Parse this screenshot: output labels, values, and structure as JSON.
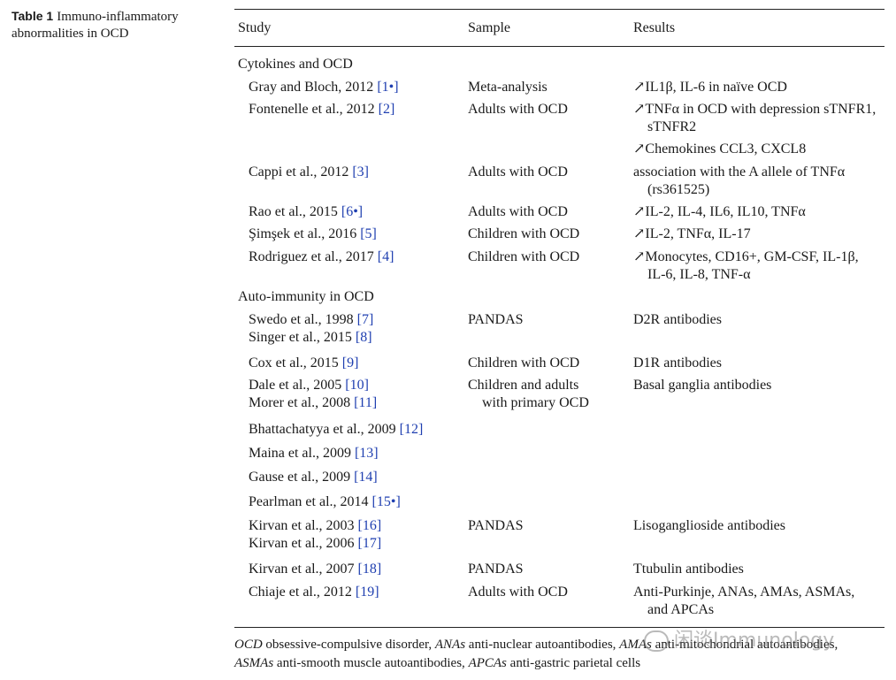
{
  "caption": {
    "label": "Table 1",
    "text": "Immuno-inflammatory abnormalities in OCD"
  },
  "columns": {
    "study": "Study",
    "sample": "Sample",
    "results": "Results"
  },
  "sections": {
    "cytokines": "Cytokines and OCD",
    "autoimmunity": "Auto-immunity in OCD"
  },
  "rows": {
    "r1": {
      "study": "Gray and Bloch, 2012 ",
      "ref": "[1•]",
      "sample": "Meta-analysis",
      "r1": "↗IL1β, IL-6 in naïve OCD"
    },
    "r2": {
      "study": "Fontenelle et al., 2012 ",
      "ref": "[2]",
      "sample": "Adults with OCD",
      "r1": "↗TNFα in OCD with depression sTNFR1,",
      "r2": "sTNFR2",
      "r3": "↗Chemokines CCL3, CXCL8"
    },
    "r3": {
      "study": "Cappi et al., 2012 ",
      "ref": "[3]",
      "sample": "Adults with OCD",
      "r1": "association with the A allele of TNFα",
      "r2": "(rs361525)"
    },
    "r4": {
      "study": "Rao et al., 2015 ",
      "ref": "[6•]",
      "sample": "Adults with OCD",
      "r1": "↗IL-2, IL-4, IL6, IL10, TNFα"
    },
    "r5": {
      "study": "Şimşek et al., 2016 ",
      "ref": "[5]",
      "sample": "Children with OCD",
      "r1": "↗IL-2, TNFα, IL-17"
    },
    "r6": {
      "study": "Rodriguez et al., 2017 ",
      "ref": "[4]",
      "sample": "Children with OCD",
      "r1": "↗Monocytes, CD16+, GM-CSF, IL-1β,",
      "r2": "IL-6, IL-8, TNF-α"
    },
    "r7": {
      "study": "Swedo et al., 1998 ",
      "ref": "[7]",
      "study2": "Singer et al., 2015 ",
      "ref2": "[8]",
      "sample": "PANDAS",
      "r1": "D2R antibodies"
    },
    "r8": {
      "study": "Cox et al., 2015 ",
      "ref": "[9]",
      "sample": "Children with OCD",
      "r1": "D1R antibodies"
    },
    "r9": {
      "study": "Dale et al., 2005 ",
      "ref": "[10]",
      "study2": "Morer et al., 2008 ",
      "ref2": "[11]",
      "sample": "Children and adults",
      "sample2": "with primary OCD",
      "r1": "Basal ganglia antibodies"
    },
    "r10": {
      "study": "Bhattachatyya et al., 2009 ",
      "ref": "[12]"
    },
    "r11": {
      "study": "Maina et al., 2009 ",
      "ref": "[13]"
    },
    "r12": {
      "study": "Gause et al., 2009 ",
      "ref": "[14]"
    },
    "r13": {
      "study": "Pearlman et al., 2014 ",
      "ref": "[15•]"
    },
    "r14": {
      "study": "Kirvan et al., 2003 ",
      "ref": "[16]",
      "study2": "Kirvan et al., 2006 ",
      "ref2": "[17]",
      "sample": "PANDAS",
      "r1": "Lisoganglioside antibodies"
    },
    "r15": {
      "study": "Kirvan et al., 2007 ",
      "ref": "[18]",
      "sample": "PANDAS",
      "r1": "Ttubulin antibodies"
    },
    "r16": {
      "study": "Chiaje et al., 2012 ",
      "ref": "[19]",
      "sample": "Adults with OCD",
      "r1": "Anti-Purkinje, ANAs, AMAs, ASMAs,",
      "r2": "and APCAs"
    }
  },
  "footnote": {
    "a1": "OCD",
    "d1": " obsessive-compulsive disorder, ",
    "a2": "ANAs",
    "d2": " anti-nuclear autoantibodies, ",
    "a3": "AMAs",
    "d3": " anti-mitochondrial autoantibodies,",
    "a4": "ASMAs",
    "d4": " anti-smooth muscle autoantibodies, ",
    "a5": "APCAs",
    "d5": " anti-gastric parietal cells"
  },
  "watermark": "闲谈Immunology",
  "colors": {
    "text": "#1a1a1a",
    "link": "#1f3fb0",
    "rule": "#222222"
  }
}
